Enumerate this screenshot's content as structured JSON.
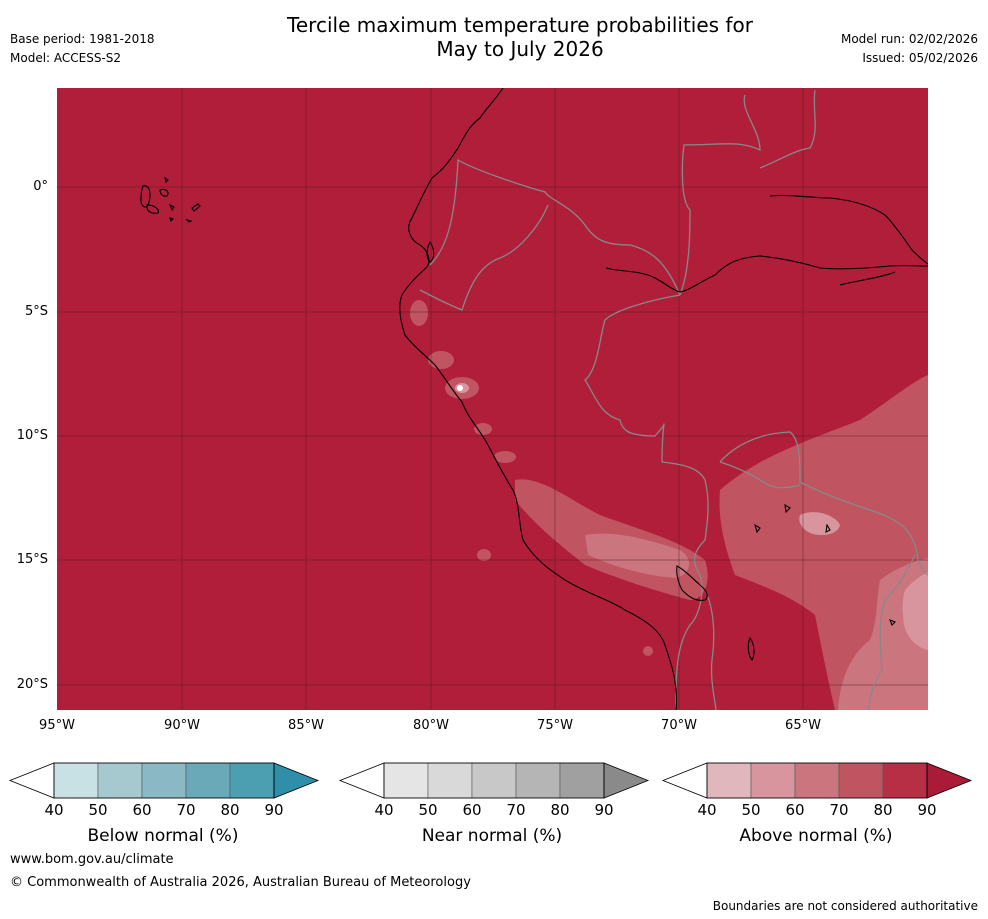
{
  "header": {
    "title_line1": "Tercile maximum temperature probabilities for",
    "title_line2": "May to July 2026",
    "base_period": "Base period: 1981-2018",
    "model": "Model: ACCESS-S2",
    "model_run": "Model run: 02/02/2026",
    "issued": "Issued: 05/02/2026"
  },
  "map": {
    "lat_ticks": [
      "0°",
      "5°S",
      "10°S",
      "15°S",
      "20°S"
    ],
    "lon_ticks": [
      "95°W",
      "90°W",
      "85°W",
      "80°W",
      "75°W",
      "70°W",
      "65°W"
    ],
    "dominant_category": "Above normal",
    "dominant_probability_band": "80-90%",
    "colors": {
      "ocean_land_fill": "#b11e39",
      "border": "#888888",
      "coast": "#000000",
      "grid": "#4a1a22"
    }
  },
  "legends": [
    {
      "label": "Below normal (%)",
      "ticks": [
        "40",
        "50",
        "60",
        "70",
        "80",
        "90"
      ],
      "colors": [
        "#ffffff",
        "#c7e1e5",
        "#a6c8cf",
        "#8ab8c4",
        "#6aaab8",
        "#4b9fb1",
        "#2f8ea8"
      ]
    },
    {
      "label": "Near normal (%)",
      "ticks": [
        "40",
        "50",
        "60",
        "70",
        "80",
        "90"
      ],
      "colors": [
        "#ffffff",
        "#e5e5e5",
        "#d9d9d9",
        "#c8c8c8",
        "#b5b5b5",
        "#a0a0a0",
        "#8a8a8a"
      ]
    },
    {
      "label": "Above normal (%)",
      "ticks": [
        "40",
        "50",
        "60",
        "70",
        "80",
        "90"
      ],
      "colors": [
        "#ffffff",
        "#e0b7bd",
        "#d8959d",
        "#cb757f",
        "#c05461",
        "#b62f45",
        "#ab1a37"
      ]
    }
  ],
  "footer": {
    "website": "www.bom.gov.au/climate",
    "copyright": "© Commonwealth of Australia 2026, Australian Bureau of Meteorology",
    "disclaimer": "Boundaries are not considered authoritative"
  }
}
